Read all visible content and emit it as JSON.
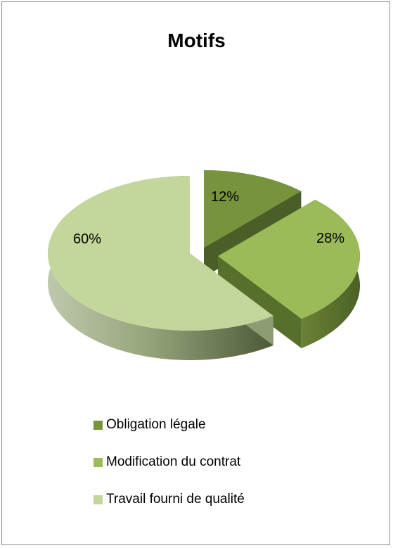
{
  "chart_data": {
    "type": "pie",
    "title": "Motifs",
    "slices": [
      {
        "label": "Obligation légale",
        "value": 12,
        "display": "12%",
        "color": "#77933C"
      },
      {
        "label": "Modification du contrat",
        "value": 28,
        "display": "28%",
        "color": "#9BBB59"
      },
      {
        "label": "Travail fourni de qualité",
        "value": 60,
        "display": "60%",
        "color": "#C3D69B"
      }
    ],
    "legend_position": "bottom",
    "style": "3d-exploded"
  }
}
